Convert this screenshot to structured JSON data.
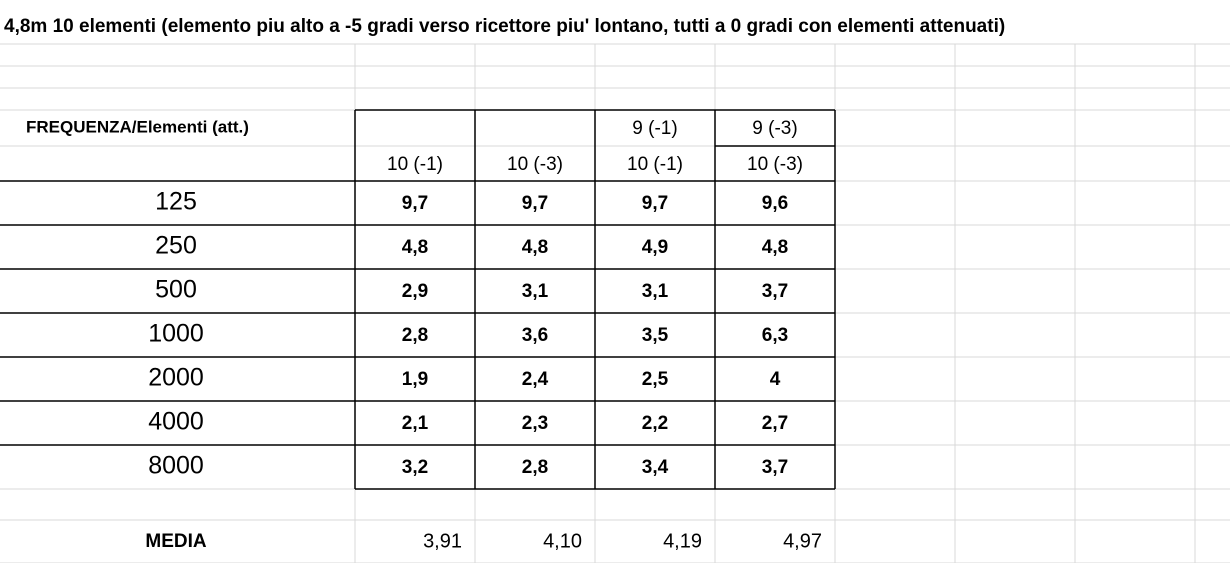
{
  "title": "4,8m 10 elementi (elemento piu alto a -5 gradi verso ricettore piu' lontano, tutti a 0 gradi con elementi attenuati)",
  "table": {
    "corner": "FREQUENZA/Elementi (att.)",
    "header_top": [
      null,
      null,
      "9 (-1)",
      "9 (-3)"
    ],
    "header_bottom": [
      "10 (-1)",
      "10 (-3)",
      "10 (-1)",
      "10 (-3)"
    ],
    "rows": [
      {
        "label": "125",
        "cells": [
          "9,7",
          "9,7",
          "9,7",
          "9,6"
        ]
      },
      {
        "label": "250",
        "cells": [
          "4,8",
          "4,8",
          "4,9",
          "4,8"
        ]
      },
      {
        "label": "500",
        "cells": [
          "2,9",
          "3,1",
          "3,1",
          "3,7"
        ]
      },
      {
        "label": "1000",
        "cells": [
          "2,8",
          "3,6",
          "3,5",
          "6,3"
        ]
      },
      {
        "label": "2000",
        "cells": [
          "1,9",
          "2,4",
          "2,5",
          "4"
        ]
      },
      {
        "label": "4000",
        "cells": [
          "2,1",
          "2,3",
          "2,2",
          "2,7"
        ]
      },
      {
        "label": "8000",
        "cells": [
          "3,2",
          "2,8",
          "3,4",
          "3,7"
        ]
      }
    ],
    "average": {
      "label": "MEDIA",
      "cells": [
        "3,91",
        "4,10",
        "4,19",
        "4,97"
      ]
    }
  }
}
